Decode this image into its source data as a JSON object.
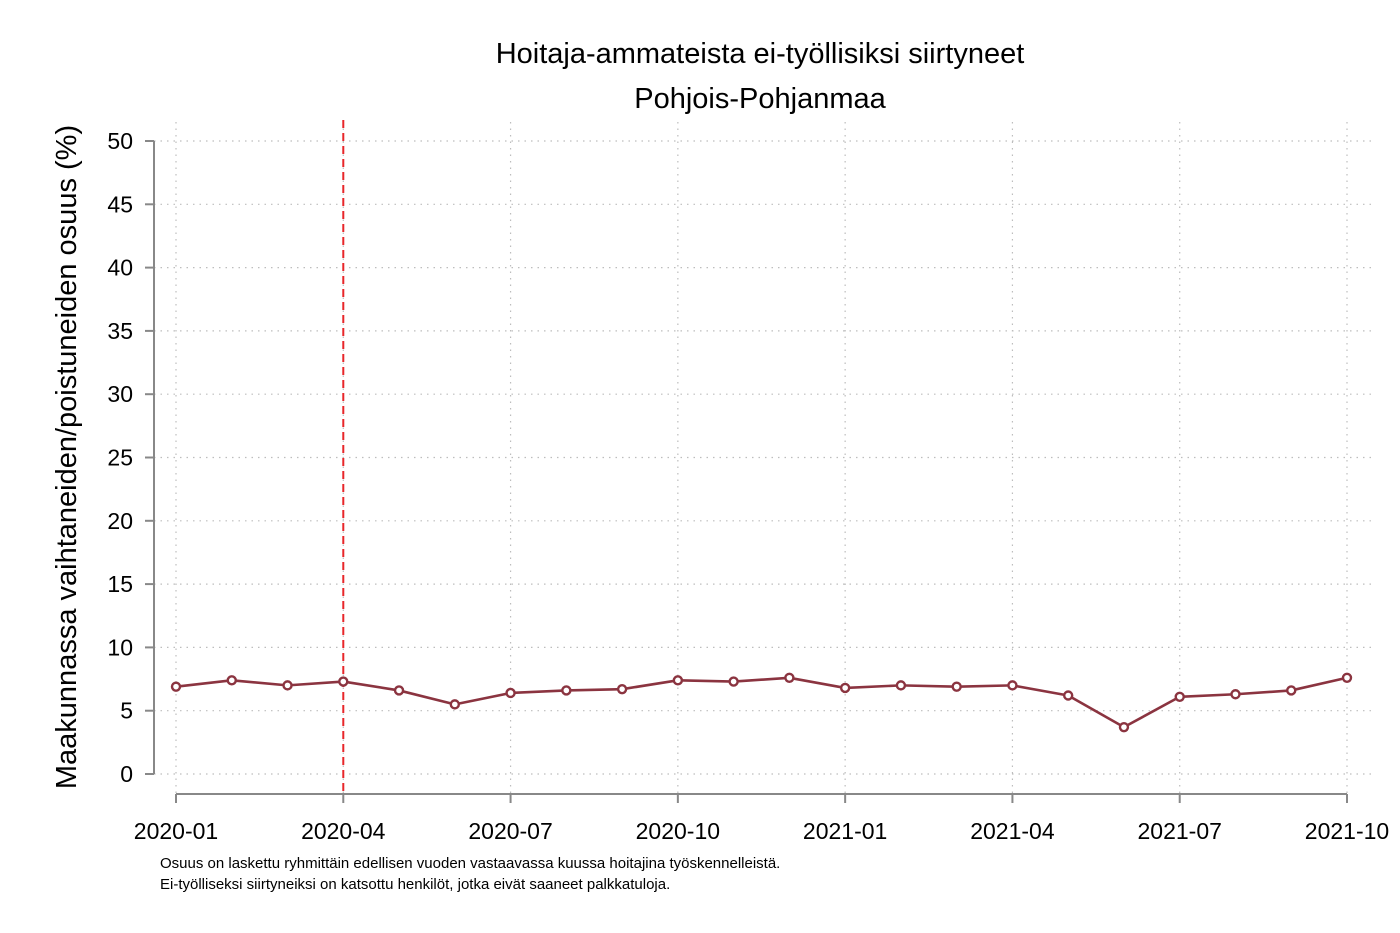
{
  "chart_data": {
    "type": "line",
    "title": "Hoitaja-ammateista ei-työllisiksi siirtyneet",
    "subtitle": "Pohjois-Pohjanmaa",
    "xlabel": "",
    "ylabel": "Maakunnassa vaihtaneiden/poistuneiden osuus (%)",
    "ylim": [
      0,
      50
    ],
    "yticks": [
      "0",
      "5",
      "10",
      "15",
      "20",
      "25",
      "30",
      "35",
      "40",
      "45",
      "50"
    ],
    "xticks": [
      "2020-01",
      "2020-04",
      "2020-07",
      "2020-10",
      "2021-01",
      "2021-04",
      "2021-07",
      "2021-10"
    ],
    "x": [
      "2020-01",
      "2020-02",
      "2020-03",
      "2020-04",
      "2020-05",
      "2020-06",
      "2020-07",
      "2020-08",
      "2020-09",
      "2020-10",
      "2020-11",
      "2020-12",
      "2021-01",
      "2021-02",
      "2021-03",
      "2021-04",
      "2021-05",
      "2021-06",
      "2021-07",
      "2021-08",
      "2021-09",
      "2021-10"
    ],
    "series": [
      {
        "values": [
          6.9,
          7.4,
          7.0,
          7.3,
          6.6,
          5.5,
          6.4,
          6.6,
          6.7,
          7.4,
          7.3,
          7.6,
          6.8,
          7.0,
          6.9,
          7.0,
          6.2,
          3.7,
          6.1,
          6.3,
          6.6,
          7.6
        ]
      }
    ],
    "reference_line": {
      "x": "2020-04",
      "style": "dashed"
    },
    "grid": true,
    "legend": "none",
    "colors": {
      "series": "#8b3440",
      "reference_line": "#e8262a",
      "axis": "#888888",
      "grid": "#bdbdbd"
    },
    "notes": [
      "Osuus on laskettu ryhmittäin edellisen vuoden vastaavassa kuussa hoitajina työskennelleistä.",
      "Ei-työlliseksi siirtyneiksi on katsottu henkilöt, jotka eivät saaneet palkkatuloja."
    ]
  }
}
